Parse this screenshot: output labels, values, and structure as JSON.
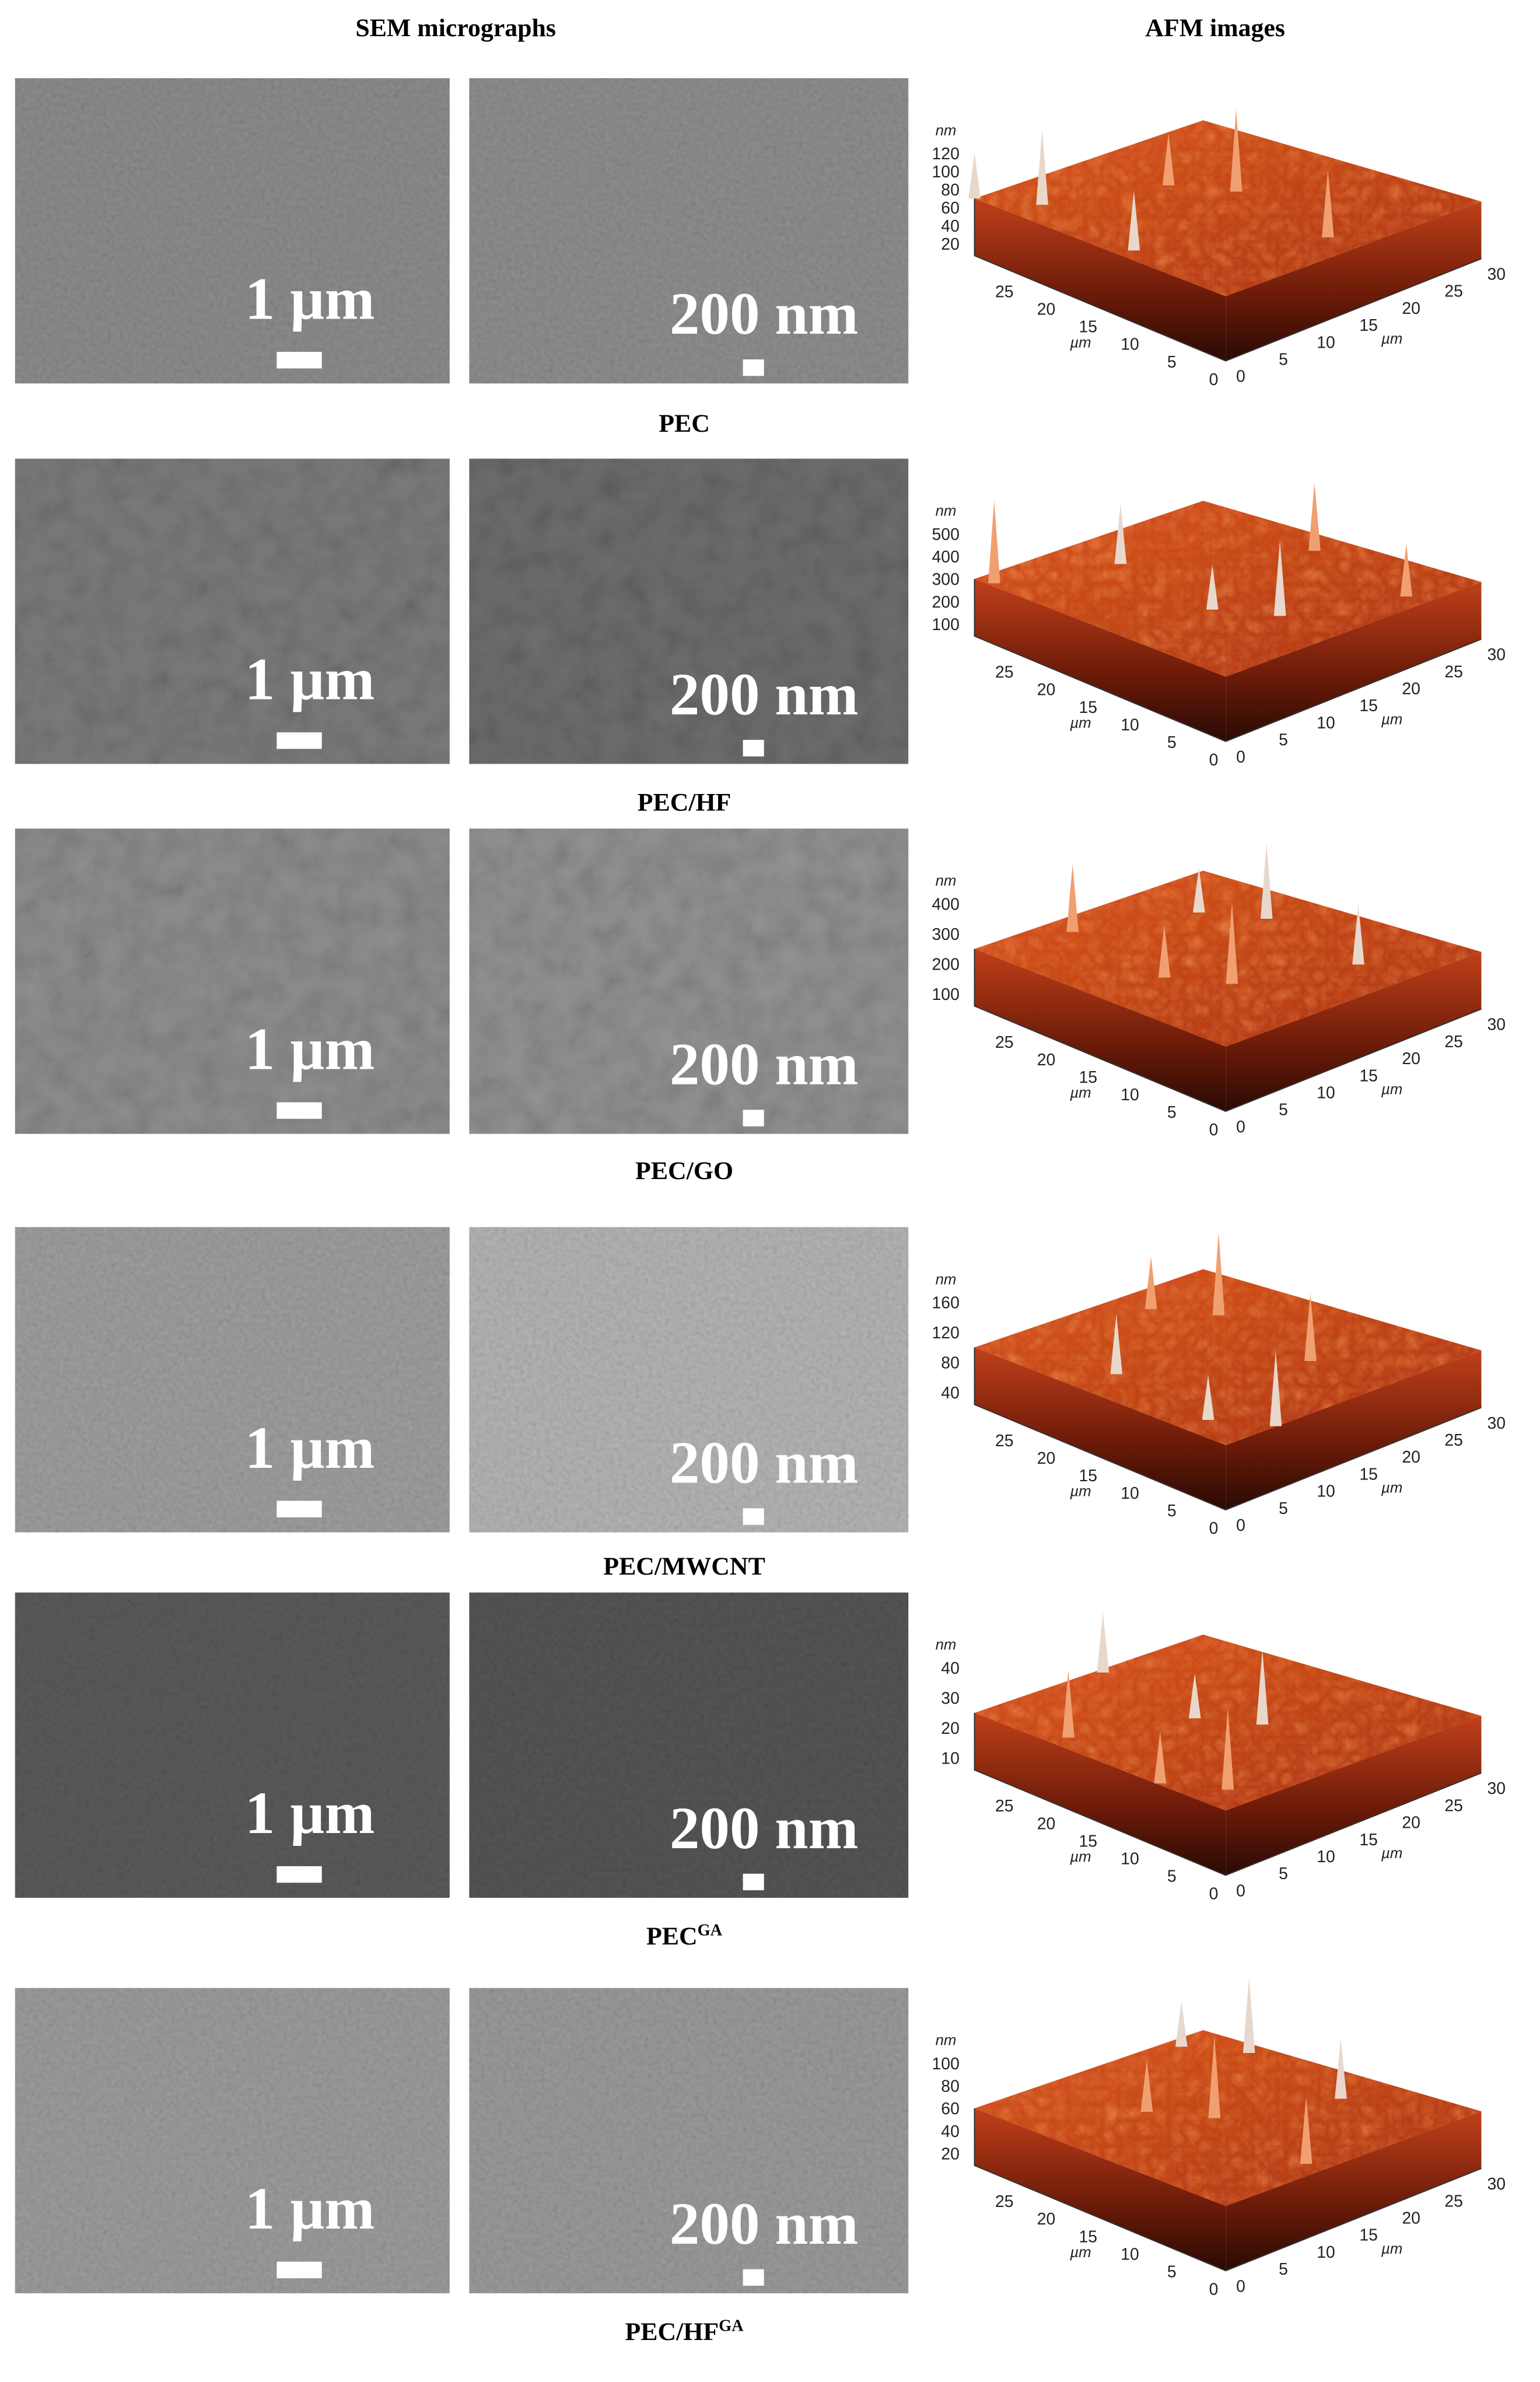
{
  "header": {
    "sem": "SEM micrographs",
    "afm": "AFM images"
  },
  "rows": [
    {
      "label": "PEC",
      "sem_low": "1 µm",
      "sem_high": "200 nm",
      "afm": {
        "z_unit": "nm",
        "z_ticks": [
          "120",
          "100",
          "80",
          "60",
          "40",
          "20"
        ],
        "y_ticks": [
          "25",
          "20",
          "15",
          "10",
          "5",
          "0"
        ],
        "x_ticks": [
          "0",
          "5",
          "10",
          "15",
          "20",
          "25",
          "30"
        ],
        "y_unit": "µm",
        "x_unit": "µm"
      }
    },
    {
      "label": "PEC/HF",
      "sem_low": "1 µm",
      "sem_high": "200 nm",
      "afm": {
        "z_unit": "nm",
        "z_ticks": [
          "500",
          "400",
          "300",
          "200",
          "100"
        ],
        "y_ticks": [
          "25",
          "20",
          "15",
          "10",
          "5",
          "0"
        ],
        "x_ticks": [
          "0",
          "5",
          "10",
          "15",
          "20",
          "25",
          "30"
        ],
        "y_unit": "µm",
        "x_unit": "µm"
      }
    },
    {
      "label": "PEC/GO",
      "sem_low": "1 µm",
      "sem_high": "200 nm",
      "afm": {
        "z_unit": "nm",
        "z_ticks": [
          "400",
          "300",
          "200",
          "100"
        ],
        "y_ticks": [
          "25",
          "20",
          "15",
          "10",
          "5",
          "0"
        ],
        "x_ticks": [
          "0",
          "5",
          "10",
          "15",
          "20",
          "25",
          "30"
        ],
        "y_unit": "µm",
        "x_unit": "µm"
      }
    },
    {
      "label": "PEC/MWCNT",
      "sem_low": "1 µm",
      "sem_high": "200 nm",
      "afm": {
        "z_unit": "nm",
        "z_ticks": [
          "160",
          "120",
          "80",
          "40"
        ],
        "y_ticks": [
          "25",
          "20",
          "15",
          "10",
          "5",
          "0"
        ],
        "x_ticks": [
          "0",
          "5",
          "10",
          "15",
          "20",
          "25",
          "30"
        ],
        "y_unit": "µm",
        "x_unit": "µm"
      }
    },
    {
      "label": "PEC",
      "label_sup": "GA",
      "sem_low": "1 µm",
      "sem_high": "200 nm",
      "afm": {
        "z_unit": "nm",
        "z_ticks": [
          "40",
          "30",
          "20",
          "10"
        ],
        "y_ticks": [
          "25",
          "20",
          "15",
          "10",
          "5",
          "0"
        ],
        "x_ticks": [
          "0",
          "5",
          "10",
          "15",
          "20",
          "25",
          "30"
        ],
        "y_unit": "µm",
        "x_unit": "µm"
      }
    },
    {
      "label": "PEC/HF",
      "label_sup": "GA",
      "sem_low": "1 µm",
      "sem_high": "200 nm",
      "afm": {
        "z_unit": "nm",
        "z_ticks": [
          "100",
          "80",
          "60",
          "40",
          "20"
        ],
        "y_ticks": [
          "25",
          "20",
          "15",
          "10",
          "5",
          "0"
        ],
        "x_ticks": [
          "0",
          "5",
          "10",
          "15",
          "20",
          "25",
          "30"
        ],
        "y_unit": "µm",
        "x_unit": "µm"
      }
    }
  ]
}
